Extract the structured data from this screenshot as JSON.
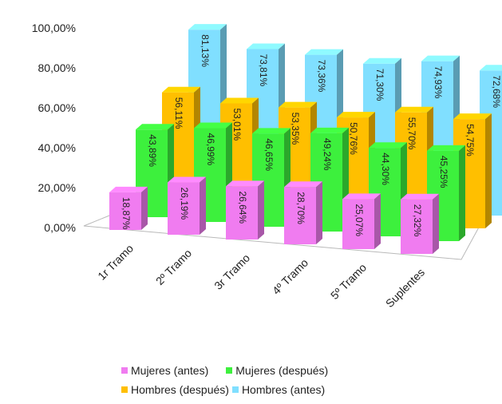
{
  "chart_data": {
    "type": "bar",
    "categories": [
      "1r Tramo",
      "2º Tramo",
      "3r Tramo",
      "4º Tramo",
      "5º Tramo",
      "Suplentes"
    ],
    "series": [
      {
        "name": "Mujeres (antes)",
        "color": "#f07cf0",
        "values": [
          18.87,
          26.19,
          26.64,
          28.7,
          25.07,
          27.32
        ],
        "labels": [
          "18,87%",
          "26,19%",
          "26,64%",
          "28,70%",
          "25,07%",
          "27,32%"
        ]
      },
      {
        "name": "Mujeres (después)",
        "color": "#3df03d",
        "values": [
          43.89,
          46.99,
          46.65,
          49.24,
          44.3,
          45.25
        ],
        "labels": [
          "43,89%",
          "46,99%",
          "46,65%",
          "49,24%",
          "44,30%",
          "45,25%"
        ]
      },
      {
        "name": "Hombres (después)",
        "color": "#ffbf00",
        "values": [
          56.11,
          53.01,
          53.35,
          50.76,
          55.7,
          54.75
        ],
        "labels": [
          "56,11%",
          "53,01%",
          "53,35%",
          "50,76%",
          "55,70%",
          "54,75%"
        ]
      },
      {
        "name": "Hombres (antes)",
        "color": "#80dfff",
        "values": [
          81.13,
          73.81,
          73.36,
          71.3,
          74.93,
          72.68
        ],
        "labels": [
          "81,13%",
          "73,81%",
          "73,36%",
          "71,30%",
          "74,93%",
          "72,68%"
        ]
      }
    ],
    "y_ticks": [
      "0,00%",
      "20,00%",
      "40,00%",
      "60,00%",
      "80,00%",
      "100,00%"
    ],
    "ylim": [
      0,
      100
    ],
    "legend_position": "bottom",
    "legend": {
      "row1": [
        "Mujeres (antes)",
        "Mujeres (después)"
      ],
      "row2": [
        "Hombres (después)",
        "Hombres (antes)"
      ]
    }
  }
}
